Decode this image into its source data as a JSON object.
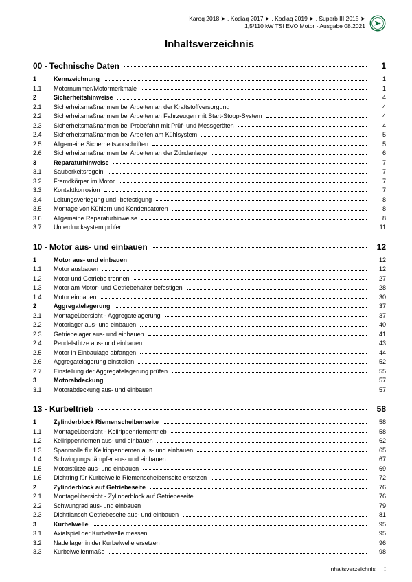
{
  "header": {
    "line1": "Karoq 2018 ➤ , Kodiaq 2017 ➤ , Kodiaq 2019 ➤ , Superb III 2015 ➤",
    "line2": "1,5/110 kW TSI EVO Motor - Ausgabe 08.2021",
    "brand": "ŠKODA"
  },
  "title": "Inhaltsverzeichnis",
  "sections": [
    {
      "heading": "00 - Technische Daten",
      "page": "1",
      "rows": [
        {
          "n": "1",
          "t": "Kennzeichnung",
          "p": "1",
          "b": true
        },
        {
          "n": "1.1",
          "t": "Motornummer/Motormerkmale",
          "p": "1"
        },
        {
          "n": "2",
          "t": "Sicherheitshinweise",
          "p": "4",
          "b": true
        },
        {
          "n": "2.1",
          "t": "Sicherheitsmaßnahmen bei Arbeiten an der Kraftstoffversorgung",
          "p": "4"
        },
        {
          "n": "2.2",
          "t": "Sicherheitsmaßnahmen bei Arbeiten an Fahrzeugen mit Start-Stopp-System",
          "p": "4"
        },
        {
          "n": "2.3",
          "t": "Sicherheitsmaßnahmen bei Probefahrt mit Prüf- und Messgeräten",
          "p": "4"
        },
        {
          "n": "2.4",
          "t": "Sicherheitsmaßnahmen bei Arbeiten am Kühlsystem",
          "p": "5"
        },
        {
          "n": "2.5",
          "t": "Allgemeine Sicherheitsvorschriften",
          "p": "5"
        },
        {
          "n": "2.6",
          "t": "Sicherheitsmaßnahmen bei Arbeiten an der Zündanlage",
          "p": "6"
        },
        {
          "n": "3",
          "t": "Reparaturhinweise",
          "p": "7",
          "b": true
        },
        {
          "n": "3.1",
          "t": "Sauberkeitsregeln",
          "p": "7"
        },
        {
          "n": "3.2",
          "t": "Fremdkörper im Motor",
          "p": "7"
        },
        {
          "n": "3.3",
          "t": "Kontaktkorrosion",
          "p": "7"
        },
        {
          "n": "3.4",
          "t": "Leitungsverlegung und -befestigung",
          "p": "8"
        },
        {
          "n": "3.5",
          "t": "Montage von Kühlern und Kondensatoren",
          "p": "8"
        },
        {
          "n": "3.6",
          "t": "Allgemeine Reparaturhinweise",
          "p": "8"
        },
        {
          "n": "3.7",
          "t": "Unterdrucksystem prüfen",
          "p": "11"
        }
      ]
    },
    {
      "heading": "10 - Motor aus- und einbauen",
      "page": "12",
      "rows": [
        {
          "n": "1",
          "t": "Motor aus- und einbauen",
          "p": "12",
          "b": true
        },
        {
          "n": "1.1",
          "t": "Motor ausbauen",
          "p": "12"
        },
        {
          "n": "1.2",
          "t": "Motor und Getriebe trennen",
          "p": "27"
        },
        {
          "n": "1.3",
          "t": "Motor am Motor- und Getriebehalter befestigen",
          "p": "28"
        },
        {
          "n": "1.4",
          "t": "Motor einbauen",
          "p": "30"
        },
        {
          "n": "2",
          "t": "Aggregatelagerung",
          "p": "37",
          "b": true
        },
        {
          "n": "2.1",
          "t": "Montageübersicht - Aggregatelagerung",
          "p": "37"
        },
        {
          "n": "2.2",
          "t": "Motorlager aus- und einbauen",
          "p": "40"
        },
        {
          "n": "2.3",
          "t": "Getriebelager aus- und einbauen",
          "p": "41"
        },
        {
          "n": "2.4",
          "t": "Pendelstütze aus- und einbauen",
          "p": "43"
        },
        {
          "n": "2.5",
          "t": "Motor in Einbaulage abfangen",
          "p": "44"
        },
        {
          "n": "2.6",
          "t": "Aggregatelagerung einstellen",
          "p": "52"
        },
        {
          "n": "2.7",
          "t": "Einstellung der Aggregatelagerung prüfen",
          "p": "55"
        },
        {
          "n": "3",
          "t": "Motorabdeckung",
          "p": "57",
          "b": true
        },
        {
          "n": "3.1",
          "t": "Motorabdeckung aus- und einbauen",
          "p": "57"
        }
      ]
    },
    {
      "heading": "13 - Kurbeltrieb",
      "page": "58",
      "rows": [
        {
          "n": "1",
          "t": "Zylinderblock Riemenscheibenseite",
          "p": "58",
          "b": true
        },
        {
          "n": "1.1",
          "t": "Montageübersicht - Keilrippenriementrieb",
          "p": "58"
        },
        {
          "n": "1.2",
          "t": "Keilrippenriemen aus- und einbauen",
          "p": "62"
        },
        {
          "n": "1.3",
          "t": "Spannrolle für Keilrippenriemen aus- und einbauen",
          "p": "65"
        },
        {
          "n": "1.4",
          "t": "Schwingungsdämpfer aus- und einbauen",
          "p": "67"
        },
        {
          "n": "1.5",
          "t": "Motorstütze aus- und einbauen",
          "p": "69"
        },
        {
          "n": "1.6",
          "t": "Dichtring für Kurbelwelle Riemenscheibenseite ersetzen",
          "p": "72"
        },
        {
          "n": "2",
          "t": "Zylinderblock auf Getriebeseite",
          "p": "76",
          "b": true
        },
        {
          "n": "2.1",
          "t": "Montageübersicht - Zylinderblock auf Getriebeseite",
          "p": "76"
        },
        {
          "n": "2.2",
          "t": "Schwungrad aus- und einbauen",
          "p": "79"
        },
        {
          "n": "2.3",
          "t": "Dichtflansch Getriebeseite aus- und einbauen",
          "p": "81"
        },
        {
          "n": "3",
          "t": "Kurbelwelle",
          "p": "95",
          "b": true
        },
        {
          "n": "3.1",
          "t": "Axialspiel der Kurbelwelle messen",
          "p": "95"
        },
        {
          "n": "3.2",
          "t": "Nadellager in der Kurbelwelle ersetzen",
          "p": "96"
        },
        {
          "n": "3.3",
          "t": "Kurbelwellenmaße",
          "p": "98"
        }
      ]
    }
  ],
  "footer": {
    "label": "Inhaltsverzeichnis",
    "page": "I"
  }
}
